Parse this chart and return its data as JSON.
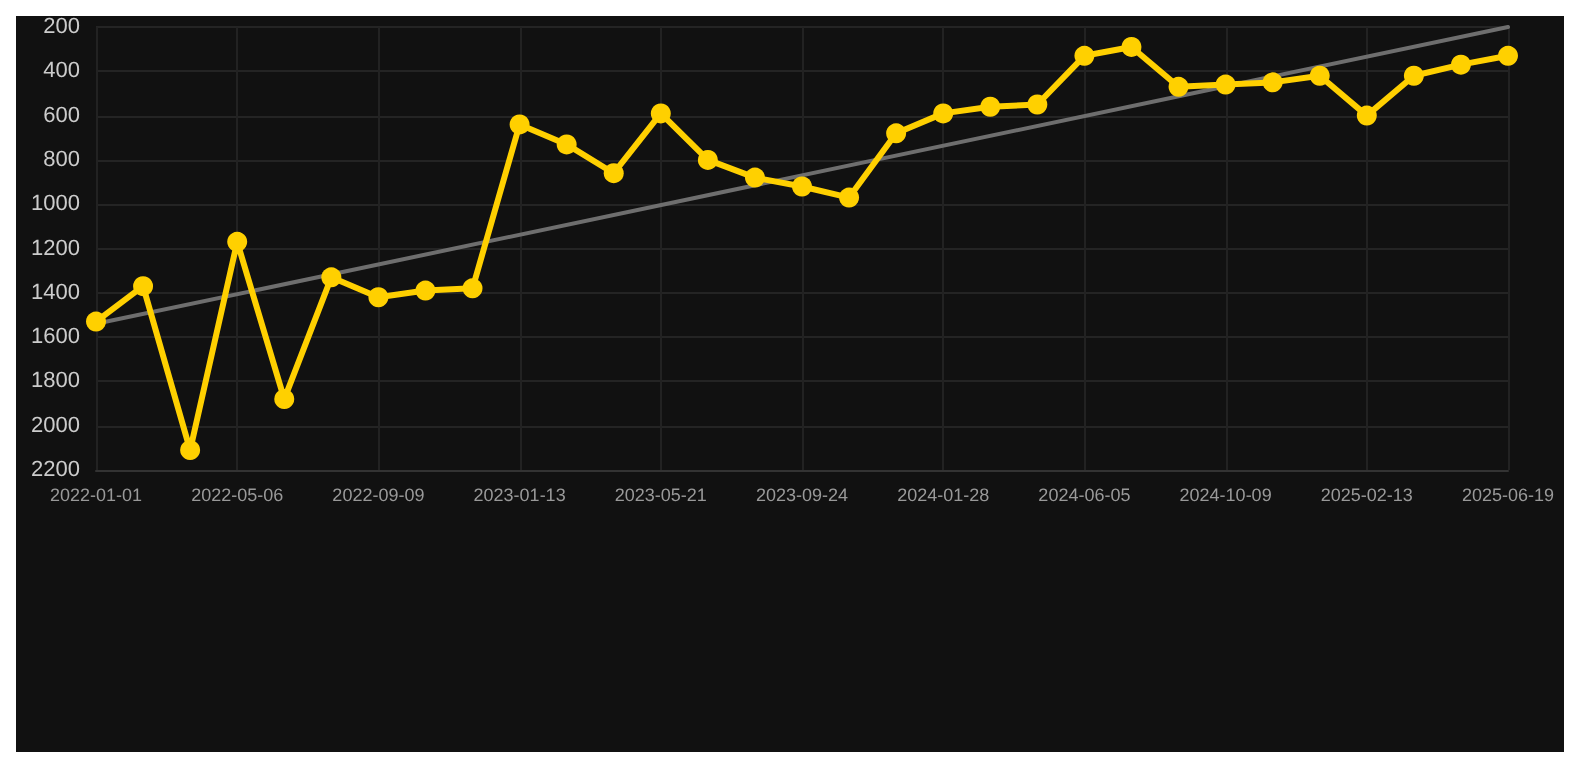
{
  "chart_data": {
    "type": "line",
    "categories": [
      "2022-01-01",
      null,
      null,
      "2022-05-06",
      null,
      null,
      "2022-09-09",
      null,
      null,
      "2023-01-13",
      null,
      null,
      "2023-05-21",
      null,
      null,
      "2023-09-24",
      null,
      null,
      "2024-01-28",
      null,
      null,
      "2024-06-05",
      null,
      null,
      "2024-10-09",
      null,
      null,
      "2025-02-13",
      null,
      null,
      "2025-06-19"
    ],
    "series": [
      {
        "color": "#ffd000",
        "marker": "circle",
        "values": [
          1530,
          1370,
          2110,
          1170,
          1880,
          1330,
          1420,
          1390,
          1380,
          640,
          730,
          860,
          590,
          800,
          880,
          920,
          970,
          680,
          590,
          560,
          550,
          330,
          290,
          470,
          460,
          450,
          420,
          600,
          420,
          370,
          330
        ]
      },
      {
        "type": "line",
        "color": "#6e6e6e",
        "marker": "none",
        "values": [
          1540,
          null,
          null,
          null,
          null,
          null,
          null,
          null,
          null,
          null,
          null,
          null,
          null,
          null,
          null,
          null,
          null,
          null,
          null,
          null,
          null,
          null,
          null,
          null,
          null,
          null,
          null,
          null,
          null,
          null,
          200
        ]
      }
    ],
    "ylim": [
      2200,
      200
    ],
    "yticks": [
      200,
      400,
      600,
      800,
      1000,
      1200,
      1400,
      1600,
      1800,
      2000,
      2200
    ],
    "grid": true
  }
}
